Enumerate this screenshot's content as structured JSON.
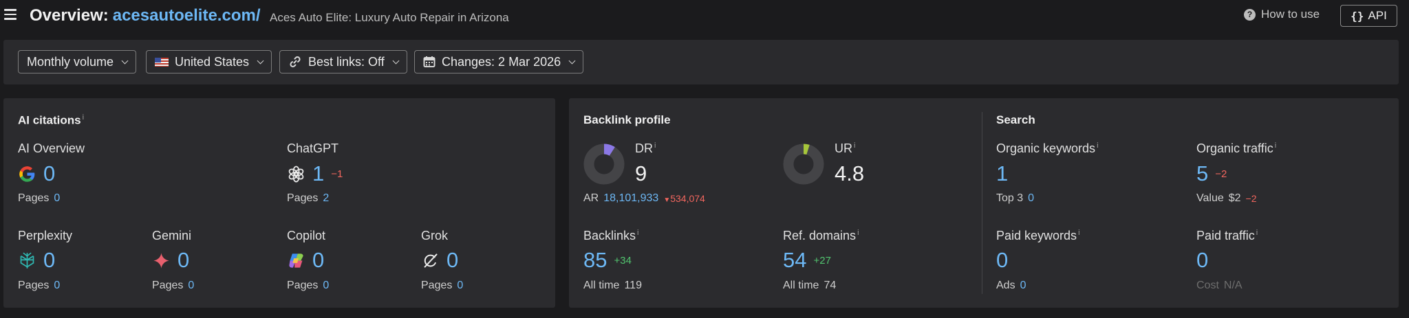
{
  "header": {
    "title": "Overview:",
    "domain": "acesautoelite.com/",
    "subtitle": "Aces Auto Elite: Luxury Auto Repair in Arizona",
    "how_to_use": "How to use",
    "api_label": "API"
  },
  "filters": {
    "volume": "Monthly volume",
    "country": "United States",
    "best_links": "Best links: Off",
    "changes": "Changes: 2 Mar 2026"
  },
  "ai_citations": {
    "title": "AI citations",
    "info": "i",
    "pages_label": "Pages",
    "overview": {
      "label": "AI Overview",
      "value": "0",
      "pages": "0"
    },
    "chatgpt": {
      "label": "ChatGPT",
      "value": "1",
      "change": "−1",
      "pages": "2"
    },
    "perplexity": {
      "label": "Perplexity",
      "value": "0",
      "pages": "0"
    },
    "gemini": {
      "label": "Gemini",
      "value": "0",
      "pages": "0"
    },
    "copilot": {
      "label": "Copilot",
      "value": "0",
      "pages": "0"
    },
    "grok": {
      "label": "Grok",
      "value": "0",
      "pages": "0"
    }
  },
  "backlink_profile": {
    "title": "Backlink profile",
    "info": "i",
    "dr": {
      "label": "DR",
      "value": "9",
      "fraction": 0.09,
      "color": "#8b78e6"
    },
    "ur": {
      "label": "UR",
      "value": "4.8",
      "fraction": 0.048,
      "color": "#a6c63b"
    },
    "ar": {
      "label": "AR",
      "value": "18,101,933",
      "change": "534,074"
    },
    "backlinks": {
      "label": "Backlinks",
      "value": "85",
      "change": "+34",
      "sub_label": "All time",
      "sub_value": "119"
    },
    "ref_domains": {
      "label": "Ref. domains",
      "value": "54",
      "change": "+27",
      "sub_label": "All time",
      "sub_value": "74"
    }
  },
  "search": {
    "title": "Search",
    "info": "i",
    "organic_keywords": {
      "label": "Organic keywords",
      "value": "1",
      "sub_label": "Top 3",
      "sub_value": "0"
    },
    "organic_traffic": {
      "label": "Organic traffic",
      "value": "5",
      "change": "−2",
      "sub_label": "Value",
      "sub_value": "$2",
      "sub_change": "−2"
    },
    "paid_keywords": {
      "label": "Paid keywords",
      "value": "0",
      "sub_label": "Ads",
      "sub_value": "0"
    },
    "paid_traffic": {
      "label": "Paid traffic",
      "value": "0",
      "sub_label": "Cost",
      "sub_value": "N/A"
    }
  },
  "colors": {
    "accent": "#6db8f5",
    "negative": "#f2665e",
    "positive": "#52c46f",
    "panel": "#2b2b2e"
  }
}
